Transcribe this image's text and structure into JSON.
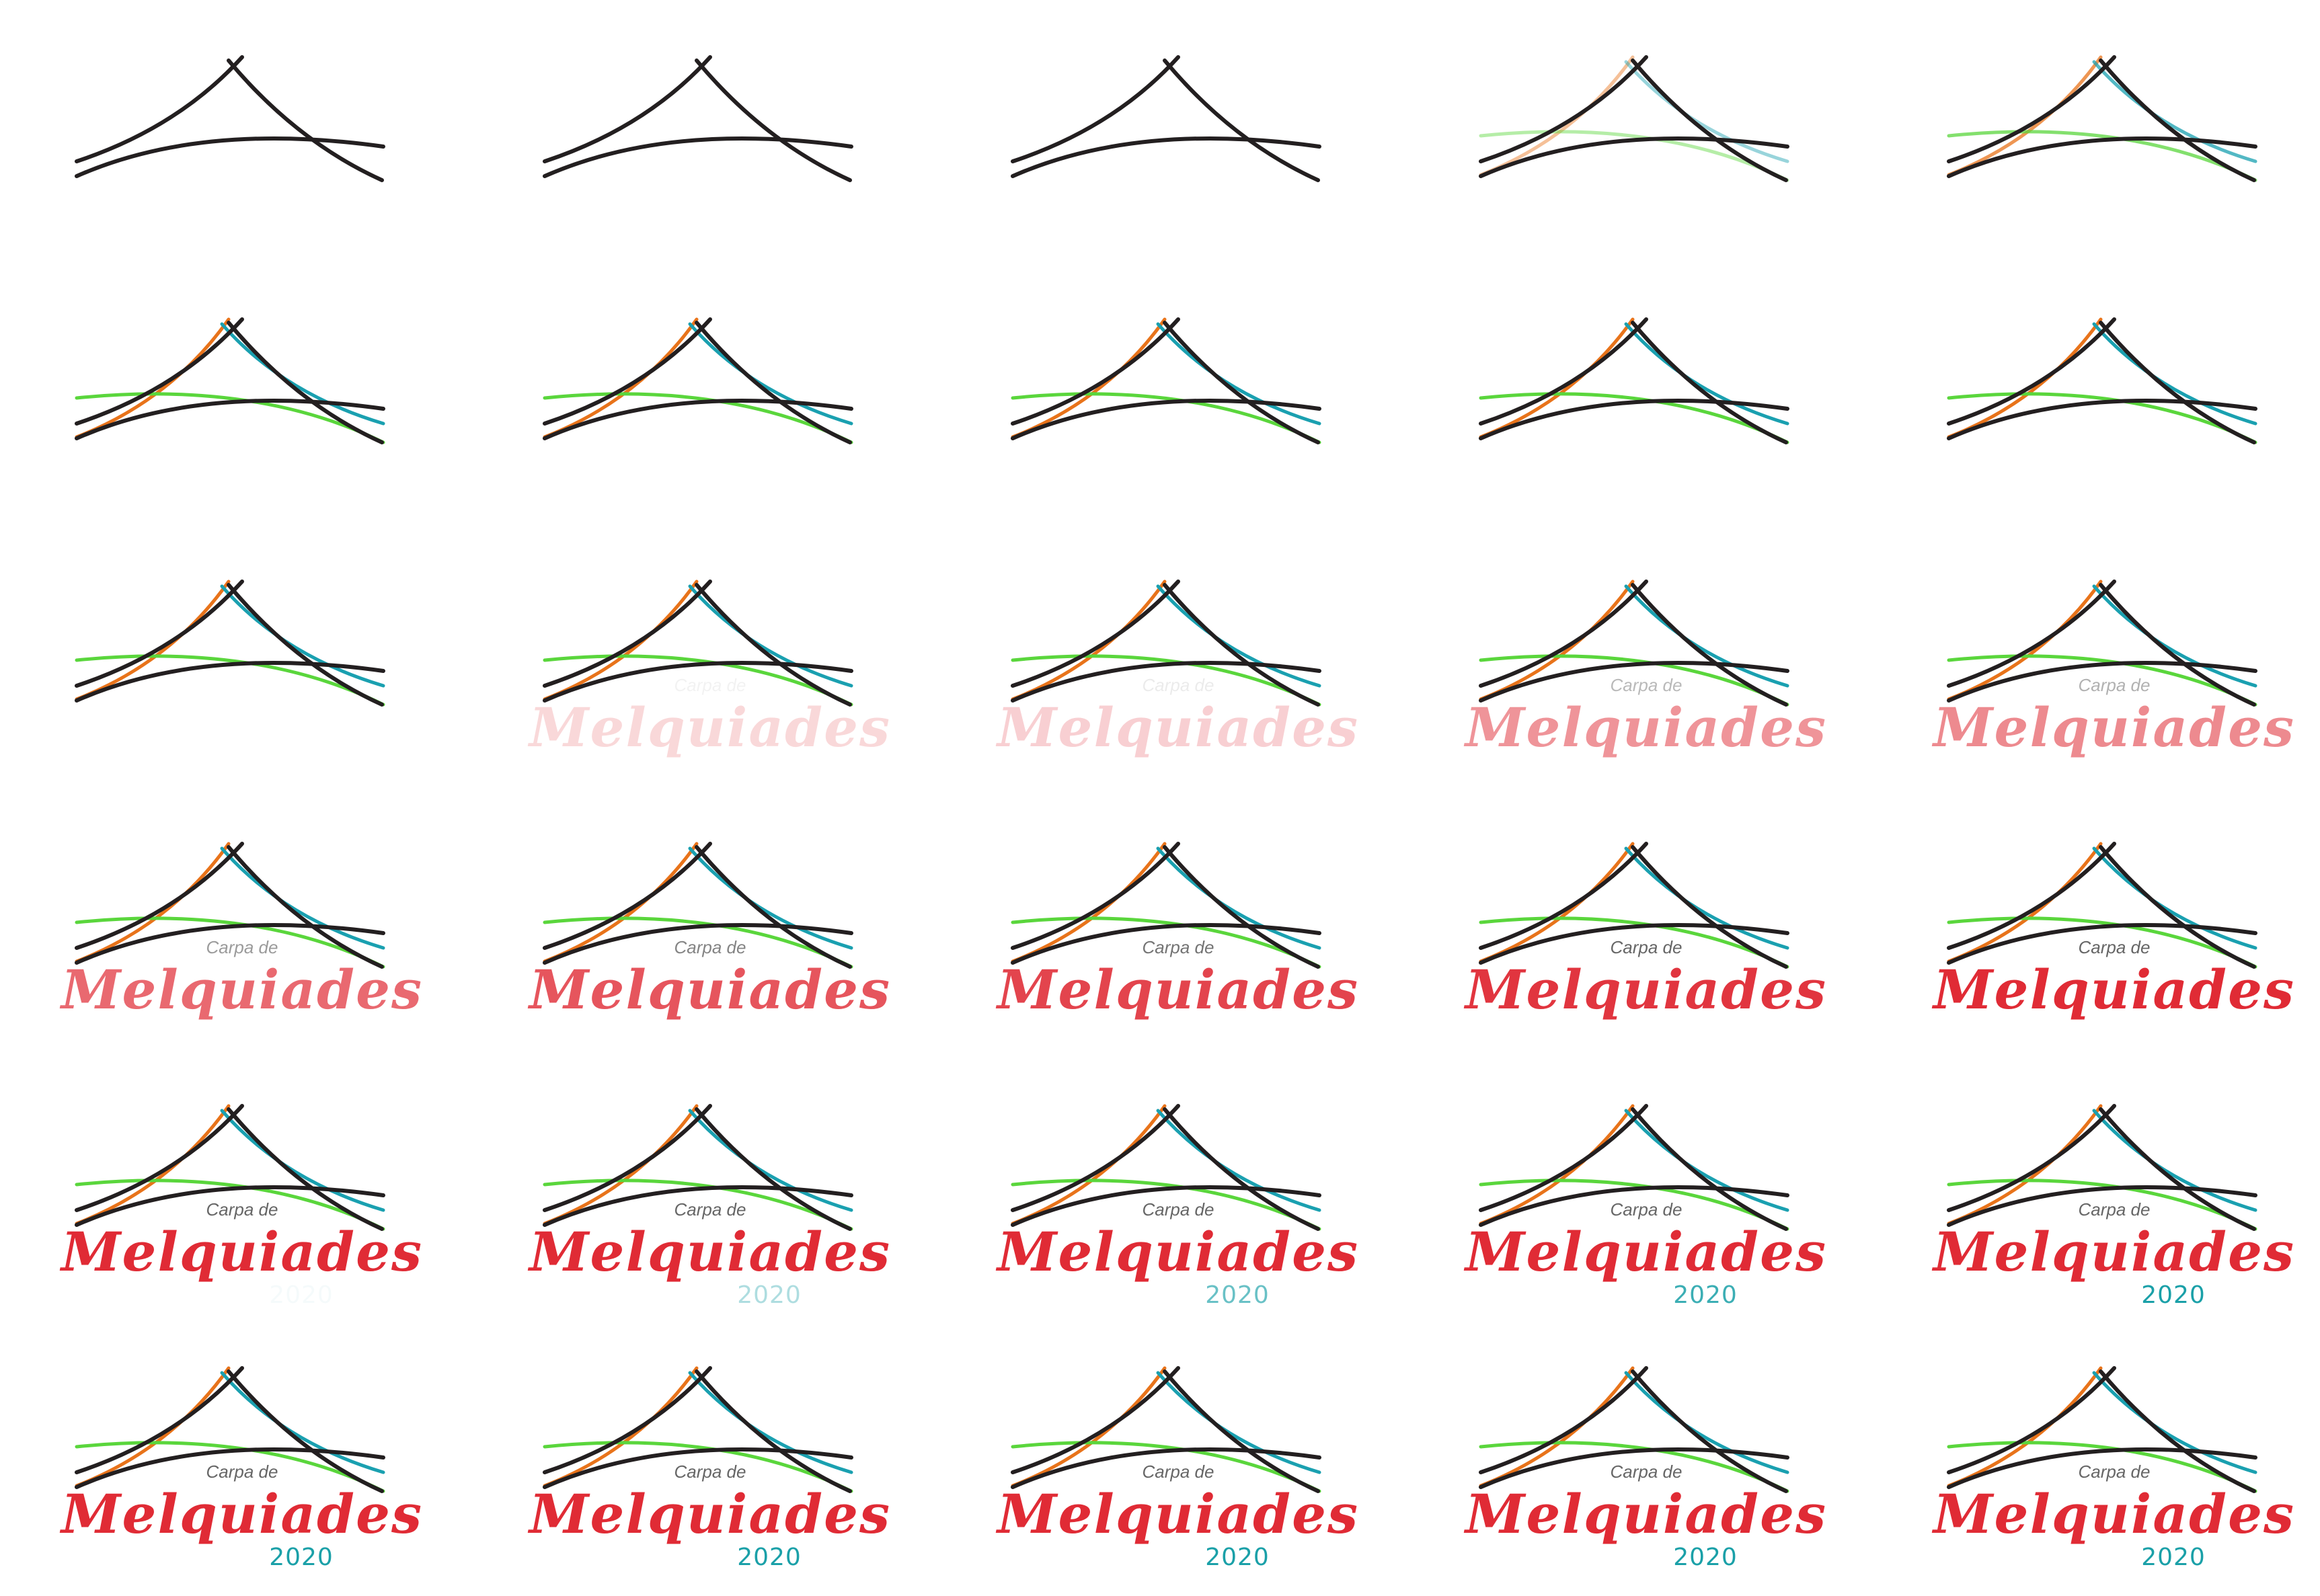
{
  "logo": {
    "line1": "Carpa de",
    "line2": "Melquiades",
    "line3": "2020"
  },
  "colors": {
    "background": "#ffffff",
    "black_line": "#231f20",
    "orange_line": "#e8731a",
    "teal_line": "#1aa0b0",
    "green_line": "#5ad63c",
    "red_text": "#e02b35",
    "gray_text": "#666666",
    "year_text": "#1aa0a8"
  },
  "frames": [
    {
      "color_lines": 0,
      "carpa": 0,
      "melquiades": 0,
      "year": 0
    },
    {
      "color_lines": 0,
      "carpa": 0,
      "melquiades": 0,
      "year": 0
    },
    {
      "color_lines": 0,
      "carpa": 0,
      "melquiades": 0,
      "year": 0
    },
    {
      "color_lines": 0.45,
      "carpa": 0,
      "melquiades": 0,
      "year": 0
    },
    {
      "color_lines": 0.75,
      "carpa": 0,
      "melquiades": 0,
      "year": 0
    },
    {
      "color_lines": 1,
      "carpa": 0,
      "melquiades": 0,
      "year": 0
    },
    {
      "color_lines": 1,
      "carpa": 0,
      "melquiades": 0,
      "year": 0
    },
    {
      "color_lines": 1,
      "carpa": 0,
      "melquiades": 0,
      "year": 0
    },
    {
      "color_lines": 1,
      "carpa": 0,
      "melquiades": 0,
      "year": 0
    },
    {
      "color_lines": 1,
      "carpa": 0,
      "melquiades": 0,
      "year": 0
    },
    {
      "color_lines": 1,
      "carpa": 0,
      "melquiades": 0,
      "year": 0
    },
    {
      "color_lines": 1,
      "carpa": 0.08,
      "melquiades": 0.18,
      "year": 0
    },
    {
      "color_lines": 1,
      "carpa": 0.12,
      "melquiades": 0.22,
      "year": 0
    },
    {
      "color_lines": 1,
      "carpa": 0.45,
      "melquiades": 0.5,
      "year": 0
    },
    {
      "color_lines": 1,
      "carpa": 0.5,
      "melquiades": 0.55,
      "year": 0
    },
    {
      "color_lines": 1,
      "carpa": 0.65,
      "melquiades": 0.7,
      "year": 0
    },
    {
      "color_lines": 1,
      "carpa": 0.8,
      "melquiades": 0.8,
      "year": 0
    },
    {
      "color_lines": 1,
      "carpa": 0.9,
      "melquiades": 0.88,
      "year": 0
    },
    {
      "color_lines": 1,
      "carpa": 1,
      "melquiades": 0.95,
      "year": 0
    },
    {
      "color_lines": 1,
      "carpa": 1,
      "melquiades": 1,
      "year": 0
    },
    {
      "color_lines": 1,
      "carpa": 1,
      "melquiades": 1,
      "year": 0.04
    },
    {
      "color_lines": 1,
      "carpa": 1,
      "melquiades": 1,
      "year": 0.35
    },
    {
      "color_lines": 1,
      "carpa": 1,
      "melquiades": 1,
      "year": 0.65
    },
    {
      "color_lines": 1,
      "carpa": 1,
      "melquiades": 1,
      "year": 0.85
    },
    {
      "color_lines": 1,
      "carpa": 1,
      "melquiades": 1,
      "year": 1
    },
    {
      "color_lines": 1,
      "carpa": 1,
      "melquiades": 1,
      "year": 1
    },
    {
      "color_lines": 1,
      "carpa": 1,
      "melquiades": 1,
      "year": 1
    },
    {
      "color_lines": 1,
      "carpa": 1,
      "melquiades": 1,
      "year": 1
    },
    {
      "color_lines": 1,
      "carpa": 1,
      "melquiades": 1,
      "year": 1
    },
    {
      "color_lines": 1,
      "carpa": 1,
      "melquiades": 1,
      "year": 1
    }
  ]
}
